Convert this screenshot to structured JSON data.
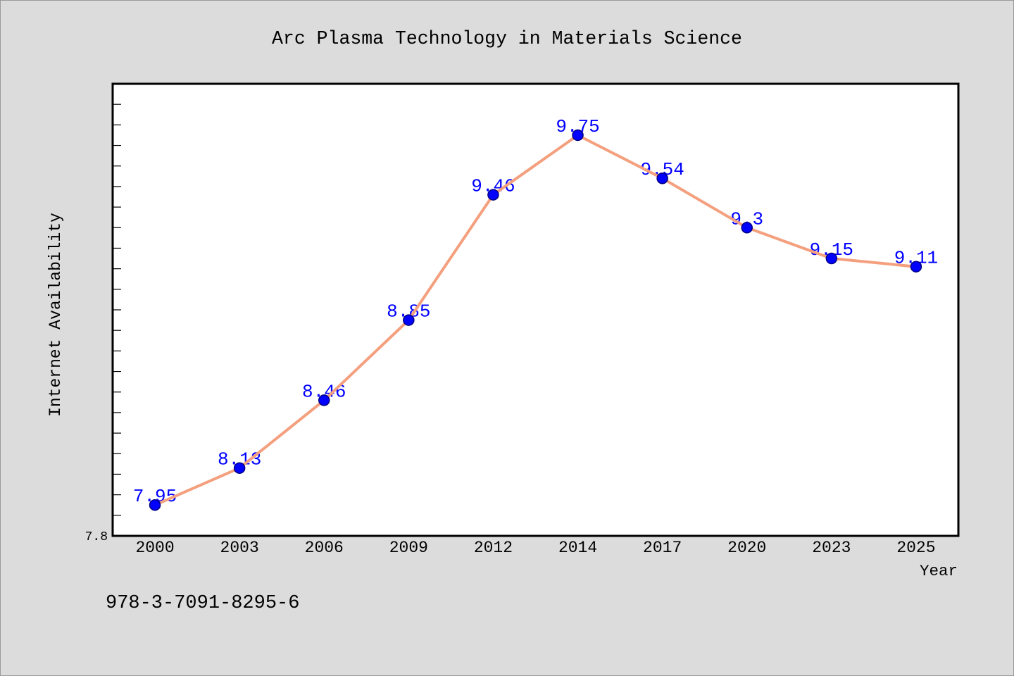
{
  "chart_data": {
    "type": "line",
    "title": "Arc Plasma Technology in Materials Science",
    "xlabel": "Year",
    "ylabel": "Internet Availability",
    "categories": [
      "2000",
      "2003",
      "2006",
      "2009",
      "2012",
      "2014",
      "2017",
      "2020",
      "2023",
      "2025"
    ],
    "series": [
      {
        "values": [
          7.95,
          8.13,
          8.46,
          8.85,
          9.46,
          9.75,
          9.54,
          9.3,
          9.15,
          9.11
        ]
      }
    ],
    "ylim": [
      7.8,
      10.0
    ],
    "y_ticks": [
      7.8
    ],
    "data_labels": true,
    "grid": false,
    "legend": false,
    "colors": {
      "background": "#dcdcdc",
      "plot_background": "#ffffff",
      "line": "#f4a07e",
      "marker": "#0000ff",
      "marker_edge": "#000080",
      "data_labels": "#0000ff"
    }
  },
  "footer": {
    "code": "978-3-7091-8295-6"
  }
}
